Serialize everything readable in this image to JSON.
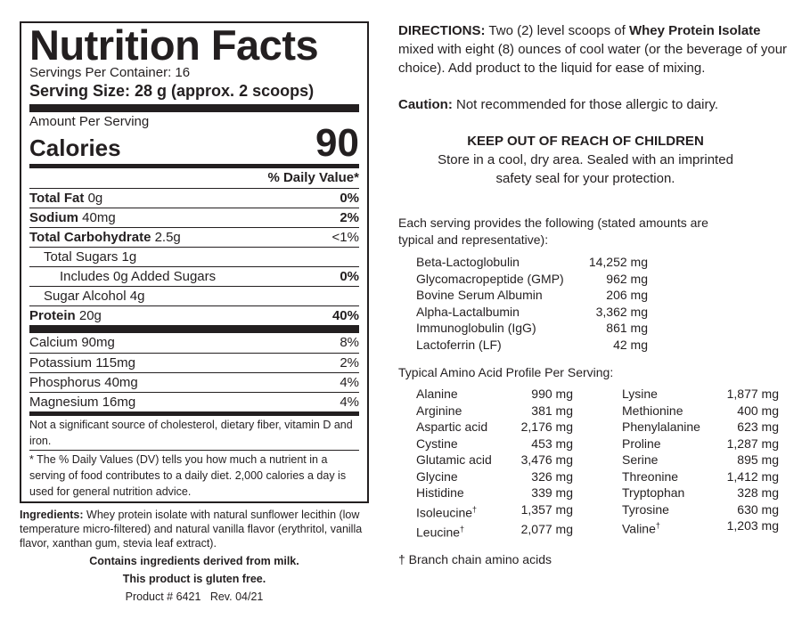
{
  "facts": {
    "title": "Nutrition Facts",
    "servings": "Servings Per Container: 16",
    "serving_size": "Serving Size: 28 g (approx. 2 scoops)",
    "amount_per_serving": "Amount Per Serving",
    "calories_label": "Calories",
    "calories_value": "90",
    "dv_header": "% Daily Value*",
    "nutrients": [
      {
        "name": "Total Fat",
        "amount": "0g",
        "dv": "0%",
        "bold": true,
        "indent": 0
      },
      {
        "name": "Sodium",
        "amount": "40mg",
        "dv": "2%",
        "bold": true,
        "indent": 0
      },
      {
        "name": "Total Carbohydrate",
        "amount": "2.5g",
        "dv": "<1%",
        "bold": true,
        "indent": 0
      },
      {
        "name": "Total Sugars 1g",
        "amount": "",
        "dv": "",
        "bold": false,
        "indent": 1
      },
      {
        "name": "Includes 0g Added Sugars",
        "amount": "",
        "dv": "0%",
        "bold": false,
        "indent": 2
      },
      {
        "name": "Sugar Alcohol 4g",
        "amount": "",
        "dv": "",
        "bold": false,
        "indent": 1
      },
      {
        "name": "Protein",
        "amount": "20g",
        "dv": "40%",
        "bold": true,
        "indent": 0
      }
    ],
    "minerals": [
      {
        "name": "Calcium 90mg",
        "dv": "8%"
      },
      {
        "name": "Potassium 115mg",
        "dv": "2%"
      },
      {
        "name": "Phosphorus 40mg",
        "dv": "4%"
      },
      {
        "name": "Magnesium 16mg",
        "dv": "4%"
      }
    ],
    "not_significant": "Not a significant source of cholesterol, dietary fiber, vitamin D and iron.",
    "dv_note": "* The % Daily Values (DV) tells you how much a nutrient in a serving of food contributes to a daily diet. 2,000 calories a day is used for general nutrition advice."
  },
  "ingredients": {
    "label": "Ingredients:",
    "text": " Whey protein isolate with natural sunflower lecithin (low temperature micro-filtered) and natural vanilla flavor (erythritol, vanilla flavor, xanthan gum, stevia leaf extract).",
    "allergen": "Contains ingredients derived from milk.",
    "gluten": "This product is gluten free.",
    "product": "Product # 6421   Rev. 04/21"
  },
  "directions": {
    "label": "DIRECTIONS:",
    "t1": " Two (2) level scoops of ",
    "product": "Whey Protein Isolate",
    "t2": " mixed with eight (8) ounces of cool water (or the beverage of your choice). Add product to the liquid for ease of mixing."
  },
  "caution": {
    "label": "Caution:",
    "text": " Not recommended for those allergic to dairy."
  },
  "keep_out": {
    "title": "KEEP OUT OF REACH OF CHILDREN",
    "line1": "Store in a cool, dry area. Sealed with an imprinted",
    "line2": "safety seal for your protection."
  },
  "fractions": {
    "intro": "Each serving provides the following (stated amounts are typical and representative):",
    "items": [
      {
        "name": "Beta-Lactoglobulin",
        "value": "14,252 mg"
      },
      {
        "name": "Glycomacropeptide (GMP)",
        "value": "962 mg"
      },
      {
        "name": "Bovine Serum Albumin",
        "value": "206 mg"
      },
      {
        "name": "Alpha-Lactalbumin",
        "value": "3,362 mg"
      },
      {
        "name": "Immunoglobulin (IgG)",
        "value": "861 mg"
      },
      {
        "name": "Lactoferrin (LF)",
        "value": "42 mg"
      }
    ]
  },
  "amino": {
    "title": "Typical Amino Acid Profile Per Serving:",
    "left": [
      {
        "name": "Alanine",
        "value": "990 mg"
      },
      {
        "name": "Arginine",
        "value": "381 mg"
      },
      {
        "name": "Aspartic acid",
        "value": "2,176 mg"
      },
      {
        "name": "Cystine",
        "value": "453 mg"
      },
      {
        "name": "Glutamic acid",
        "value": "3,476 mg"
      },
      {
        "name": "Glycine",
        "value": "326 mg"
      },
      {
        "name": "Histidine",
        "value": "339 mg"
      },
      {
        "name": "Isoleucine†",
        "value": "1,357 mg"
      },
      {
        "name": "Leucine†",
        "value": "2,077 mg"
      }
    ],
    "right": [
      {
        "name": "Lysine",
        "value": "1,877 mg"
      },
      {
        "name": "Methionine",
        "value": "400 mg"
      },
      {
        "name": "Phenylalanine",
        "value": "623 mg"
      },
      {
        "name": "Proline",
        "value": "1,287 mg"
      },
      {
        "name": "Serine",
        "value": "895 mg"
      },
      {
        "name": "Threonine",
        "value": "1,412 mg"
      },
      {
        "name": "Tryptophan",
        "value": "328 mg"
      },
      {
        "name": "Tyrosine",
        "value": "630 mg"
      },
      {
        "name": "Valine†",
        "value": "1,203 mg"
      }
    ],
    "footnote": "† Branch chain amino acids"
  }
}
